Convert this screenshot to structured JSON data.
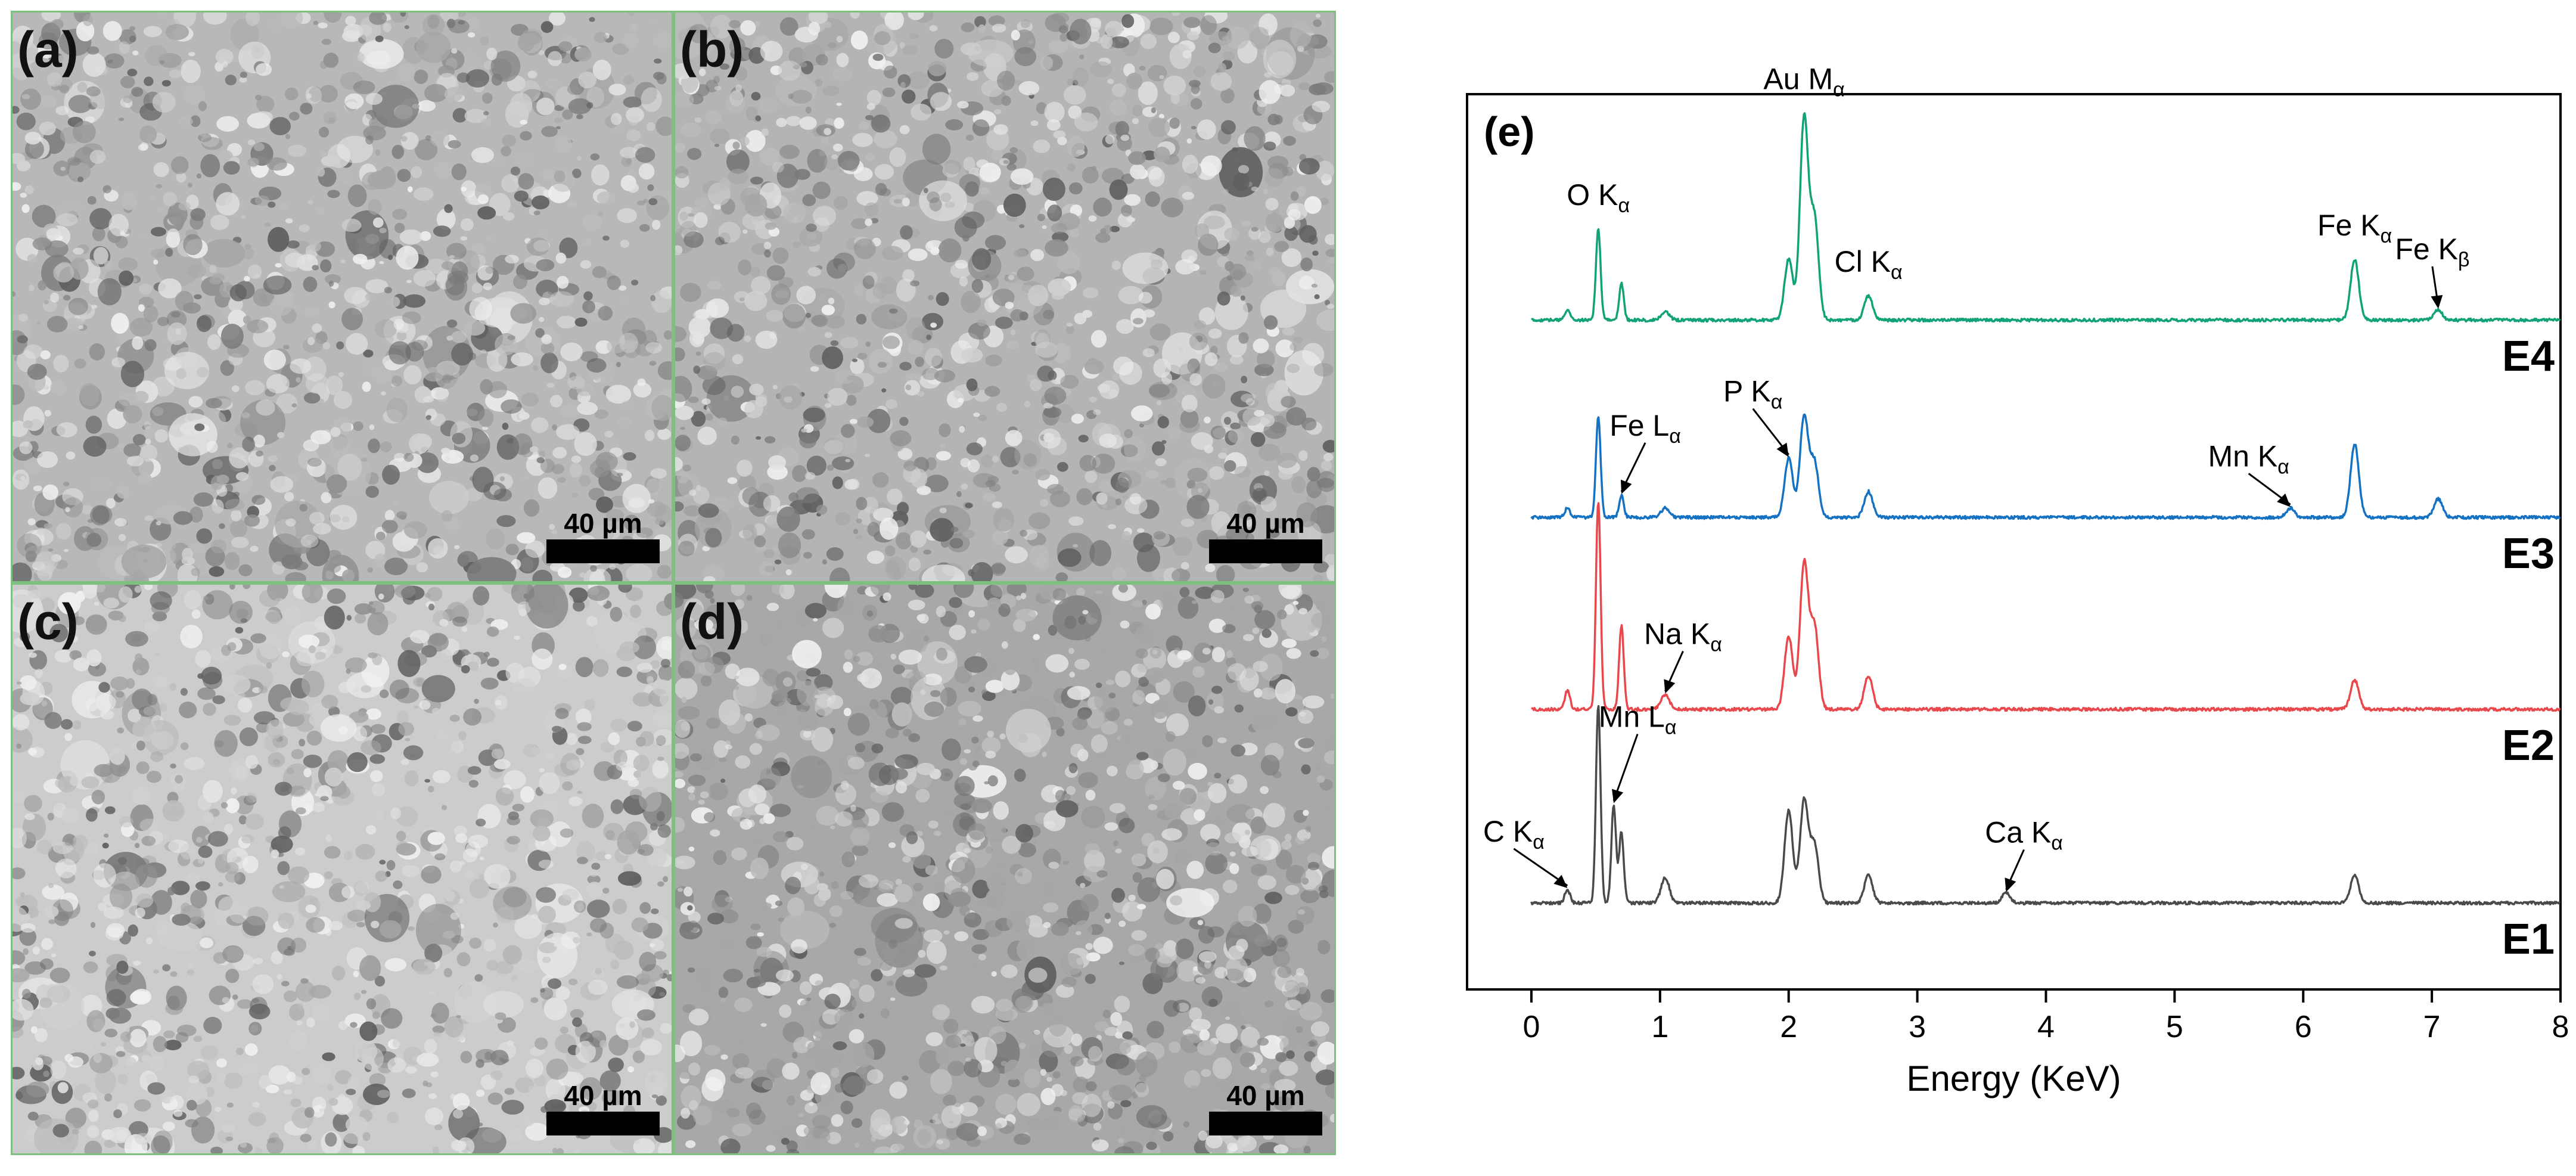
{
  "panels": [
    {
      "id": "a",
      "label": "(a)",
      "scale": "40 µm",
      "tone": "#b8b8b8"
    },
    {
      "id": "b",
      "label": "(b)",
      "scale": "40 µm",
      "tone": "#b4b4b4"
    },
    {
      "id": "c",
      "label": "(c)",
      "scale": "40 µm",
      "tone": "#cccccc"
    },
    {
      "id": "d",
      "label": "(d)",
      "scale": "40 µm",
      "tone": "#a8a8a8"
    }
  ],
  "chart_data": {
    "type": "line",
    "panel_label": "(e)",
    "xlabel": "Energy (KeV)",
    "xlim": [
      -0.5,
      8
    ],
    "xticks": [
      0,
      1,
      2,
      3,
      4,
      5,
      6,
      7,
      8
    ],
    "series": [
      {
        "name": "E4",
        "color": "#11a277",
        "peaks": [
          [
            0.28,
            0.05
          ],
          [
            0.52,
            0.45
          ],
          [
            0.7,
            0.18
          ],
          [
            1.04,
            0.04
          ],
          [
            2.0,
            0.3
          ],
          [
            2.12,
            1.0
          ],
          [
            2.2,
            0.5
          ],
          [
            2.62,
            0.12
          ],
          [
            6.4,
            0.3
          ],
          [
            7.05,
            0.05
          ]
        ]
      },
      {
        "name": "E3",
        "color": "#1572c2",
        "peaks": [
          [
            0.28,
            0.05
          ],
          [
            0.52,
            0.55
          ],
          [
            0.7,
            0.12
          ],
          [
            1.04,
            0.05
          ],
          [
            2.0,
            0.32
          ],
          [
            2.12,
            0.55
          ],
          [
            2.2,
            0.3
          ],
          [
            2.62,
            0.14
          ],
          [
            5.9,
            0.05
          ],
          [
            6.4,
            0.4
          ],
          [
            7.05,
            0.1
          ]
        ]
      },
      {
        "name": "E2",
        "color": "#e8484b",
        "peaks": [
          [
            0.28,
            0.09
          ],
          [
            0.52,
            1.0
          ],
          [
            0.7,
            0.4
          ],
          [
            1.04,
            0.07
          ],
          [
            2.0,
            0.35
          ],
          [
            2.12,
            0.7
          ],
          [
            2.2,
            0.4
          ],
          [
            2.62,
            0.16
          ],
          [
            6.4,
            0.14
          ]
        ]
      },
      {
        "name": "E1",
        "color": "#4a4a4a",
        "peaks": [
          [
            0.28,
            0.07
          ],
          [
            0.52,
            1.0
          ],
          [
            0.64,
            0.5
          ],
          [
            0.7,
            0.36
          ],
          [
            1.04,
            0.13
          ],
          [
            2.0,
            0.47
          ],
          [
            2.12,
            0.52
          ],
          [
            2.2,
            0.3
          ],
          [
            2.62,
            0.14
          ],
          [
            3.69,
            0.05
          ],
          [
            6.4,
            0.14
          ]
        ]
      }
    ],
    "annotations": [
      {
        "series": "E4",
        "element": "O K",
        "sub": "α",
        "x": 0.52
      },
      {
        "series": "E4",
        "element": "Au M",
        "sub": "α",
        "x": 2.12
      },
      {
        "series": "E4",
        "element": "Cl K",
        "sub": "α",
        "x": 2.62
      },
      {
        "series": "E4",
        "element": "Fe K",
        "sub": "α",
        "x": 6.4
      },
      {
        "series": "E4",
        "element": "Fe K",
        "sub": "β",
        "x": 7.05,
        "arrow": true
      },
      {
        "series": "E3",
        "element": "Fe L",
        "sub": "α",
        "x": 0.7,
        "arrow": true
      },
      {
        "series": "E3",
        "element": "P K",
        "sub": "α",
        "x": 2.0,
        "arrow": true
      },
      {
        "series": "E3",
        "element": "Mn K",
        "sub": "α",
        "x": 5.9,
        "arrow": true
      },
      {
        "series": "E2",
        "element": "Na K",
        "sub": "α",
        "x": 1.04,
        "arrow": true
      },
      {
        "series": "E1",
        "element": "C K",
        "sub": "α",
        "x": 0.28,
        "arrow": true
      },
      {
        "series": "E1",
        "element": "Mn L",
        "sub": "α",
        "x": 0.64,
        "arrow": true
      },
      {
        "series": "E1",
        "element": "Ca K",
        "sub": "α",
        "x": 3.69,
        "arrow": true
      }
    ]
  }
}
